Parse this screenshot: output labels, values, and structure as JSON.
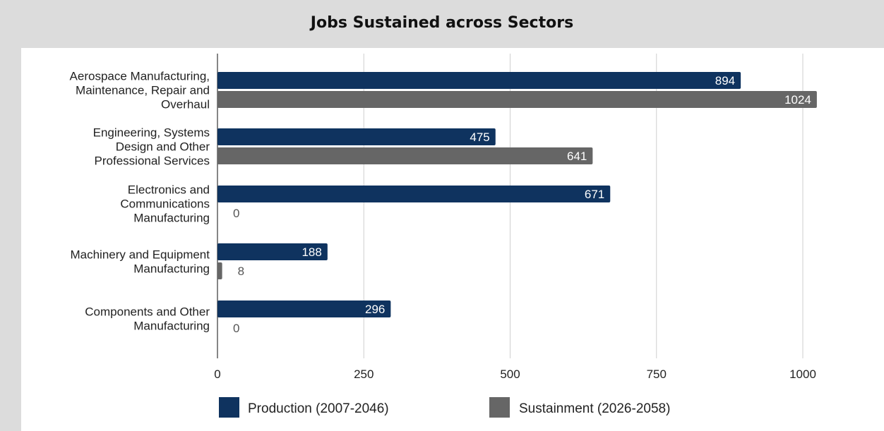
{
  "chart_data": {
    "type": "bar",
    "orientation": "horizontal",
    "title": "Jobs Sustained across Sectors",
    "categories": [
      [
        "Aerospace Manufacturing,",
        "Maintenance, Repair and",
        "Overhaul"
      ],
      [
        "Engineering, Systems",
        "Design and Other",
        "Professional Services"
      ],
      [
        "Electronics and",
        "Communications",
        "Manufacturing"
      ],
      [
        "Machinery and Equipment",
        "Manufacturing"
      ],
      [
        "Components and Other",
        "Manufacturing"
      ]
    ],
    "series": [
      {
        "name": "Production (2007-2046)",
        "color": "#0f335f",
        "values": [
          894,
          475,
          671,
          188,
          296
        ]
      },
      {
        "name": "Sustainment (2026-2058)",
        "color": "#666666",
        "values": [
          1024,
          641,
          0,
          8,
          0
        ]
      }
    ],
    "xlim": [
      0,
      1000
    ],
    "xticks": [
      "0",
      "250",
      "500",
      "750",
      "1000"
    ],
    "grid": true,
    "legend_position": "bottom"
  }
}
